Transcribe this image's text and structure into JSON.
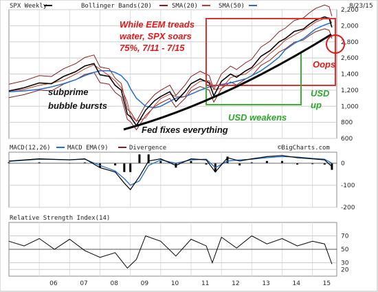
{
  "chart_data": {
    "type": "line",
    "date_label": "8/23/15",
    "watermark": "©BigCharts.com",
    "x_ticks": [
      "06",
      "07",
      "08",
      "09",
      "10",
      "11",
      "12",
      "13",
      "14",
      "15"
    ],
    "price_panel": {
      "legend": [
        {
          "name": "SPX Weekly",
          "color": "#000000"
        },
        {
          "name": "Bollinger Bands(20)",
          "color": "#8b1a1a"
        },
        {
          "name": "SMA(20)",
          "color": "#c0392b"
        },
        {
          "name": "SMA(50)",
          "color": "#1f6fd0"
        }
      ],
      "y_ticks": [
        600,
        800,
        1000,
        1200,
        1400,
        1600,
        1800,
        2000,
        2200
      ],
      "ylim": [
        600,
        2200
      ],
      "x": [
        2005.0,
        2005.5,
        2006.0,
        2006.4,
        2006.8,
        2007.2,
        2007.5,
        2007.8,
        2008.0,
        2008.3,
        2008.5,
        2008.7,
        2008.9,
        2009.0,
        2009.2,
        2009.5,
        2009.8,
        2010.0,
        2010.3,
        2010.5,
        2010.8,
        2011.0,
        2011.3,
        2011.6,
        2011.75,
        2012.0,
        2012.3,
        2012.5,
        2012.8,
        2013.0,
        2013.3,
        2013.6,
        2013.9,
        2014.1,
        2014.4,
        2014.7,
        2014.9,
        2015.1,
        2015.4,
        2015.55,
        2015.64
      ],
      "close": [
        1190,
        1230,
        1290,
        1280,
        1370,
        1430,
        1500,
        1530,
        1390,
        1370,
        1260,
        1200,
        900,
        870,
        760,
        950,
        1070,
        1120,
        1180,
        1060,
        1180,
        1280,
        1340,
        1290,
        1130,
        1310,
        1400,
        1360,
        1440,
        1480,
        1620,
        1690,
        1800,
        1840,
        1930,
        1960,
        2020,
        2070,
        2110,
        2090,
        1980
      ],
      "sma50": [
        1180,
        1190,
        1210,
        1240,
        1280,
        1330,
        1380,
        1420,
        1440,
        1440,
        1420,
        1380,
        1300,
        1220,
        1100,
        1000,
        980,
        1000,
        1060,
        1100,
        1120,
        1150,
        1200,
        1240,
        1250,
        1270,
        1290,
        1310,
        1340,
        1380,
        1440,
        1520,
        1610,
        1700,
        1780,
        1840,
        1900,
        1960,
        2010,
        2030,
        2040
      ]
    },
    "annotations": {
      "eem_text": "While EEM treads water, SPX soars 75%, 7/11 - 7/15",
      "subprime": "subprime bubble bursts",
      "fed": "Fed fixes everything",
      "usd_weakens": "USD weakens",
      "usd_up": "USD up",
      "oops": "Oops"
    },
    "macd_panel": {
      "legend": [
        {
          "name": "MACD(12,26)",
          "color": "#000000"
        },
        {
          "name": "MACD EMA(9)",
          "color": "#1f6fd0"
        },
        {
          "name": "Divergence",
          "color": "#8b1a1a"
        }
      ],
      "y_ticks": [
        0,
        -100,
        -200
      ],
      "ylim": [
        -200,
        50
      ],
      "x": [
        2005.0,
        2006.0,
        2007.0,
        2007.5,
        2008.0,
        2008.5,
        2008.8,
        2009.0,
        2009.3,
        2009.6,
        2010.0,
        2010.5,
        2011.0,
        2011.5,
        2011.8,
        2012.2,
        2012.6,
        2013.0,
        2013.5,
        2014.0,
        2014.5,
        2015.0,
        2015.4,
        2015.64
      ],
      "macd": [
        10,
        20,
        15,
        20,
        -20,
        -40,
        -90,
        -120,
        -60,
        10,
        20,
        -10,
        20,
        15,
        -40,
        25,
        10,
        20,
        30,
        35,
        25,
        20,
        15,
        -15
      ],
      "signal": [
        8,
        18,
        16,
        18,
        -10,
        -35,
        -70,
        -100,
        -80,
        -10,
        15,
        0,
        15,
        18,
        -20,
        10,
        15,
        18,
        25,
        30,
        28,
        22,
        18,
        0
      ]
    },
    "rsi_panel": {
      "legend": [
        {
          "name": "Relative Strength Index(14)",
          "color": "#000000"
        }
      ],
      "y_ticks": [
        70,
        50,
        30,
        20
      ],
      "ylim": [
        10,
        90
      ],
      "x": [
        2005.0,
        2005.5,
        2006.0,
        2006.5,
        2007.0,
        2007.5,
        2008.0,
        2008.5,
        2008.9,
        2009.2,
        2009.5,
        2010.0,
        2010.5,
        2011.0,
        2011.5,
        2011.7,
        2012.0,
        2012.5,
        2013.0,
        2013.5,
        2014.0,
        2014.5,
        2015.0,
        2015.4,
        2015.64
      ],
      "rsi": [
        62,
        55,
        66,
        50,
        65,
        48,
        38,
        45,
        22,
        35,
        70,
        62,
        40,
        65,
        55,
        30,
        68,
        52,
        70,
        58,
        66,
        55,
        62,
        58,
        28
      ]
    },
    "colors": {
      "accent_box_red": "#e03030",
      "accent_box_green": "#3ab03a",
      "annotation_red": "#e01818",
      "annotation_green": "#2aa82a",
      "oops_circle": "#e01818"
    }
  }
}
